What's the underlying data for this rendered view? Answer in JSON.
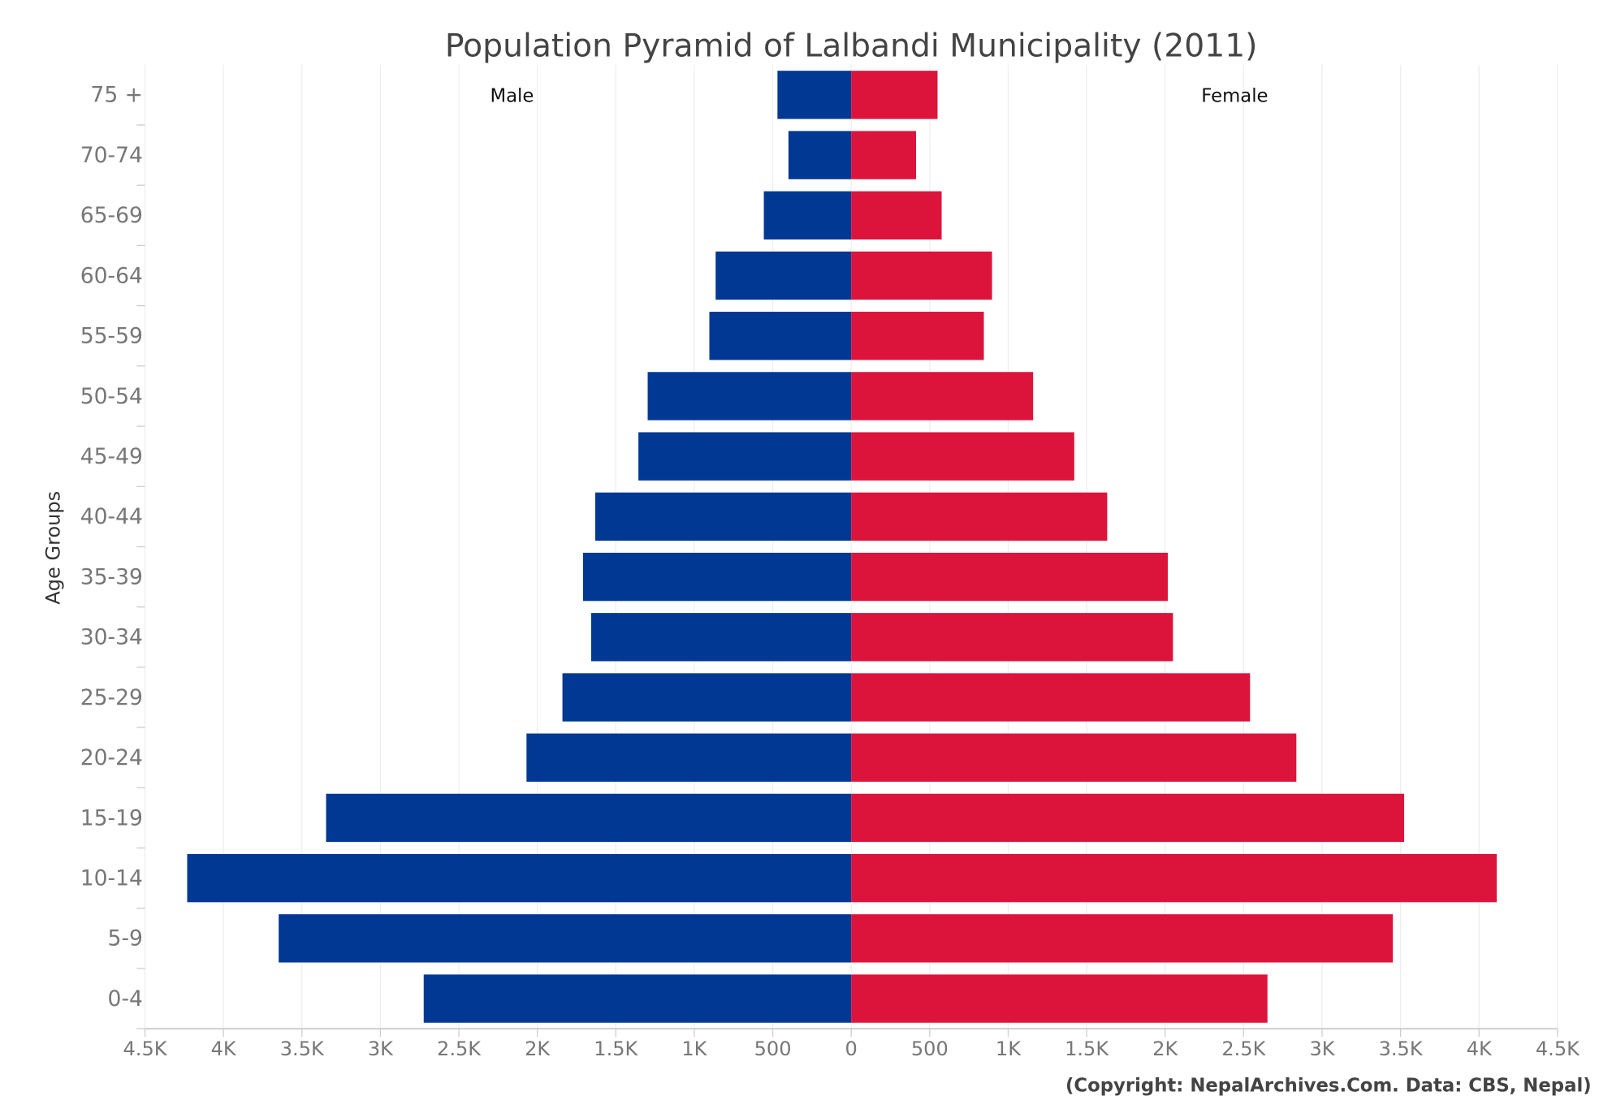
{
  "chart_data": {
    "type": "bar",
    "orientation": "horizontal",
    "title": "Population Pyramid of Lalbandi Municipality (2011)",
    "ylabel": "Age Groups",
    "xlabel": "",
    "credit": "(Copyright: NepalArchives.Com. Data: CBS, Nepal)",
    "categories": [
      "0-4",
      "5-9",
      "10-14",
      "15-19",
      "20-24",
      "25-29",
      "30-34",
      "35-39",
      "40-44",
      "45-49",
      "50-54",
      "55-59",
      "60-64",
      "65-69",
      "70-74",
      "75 +"
    ],
    "xlim": [
      -4500,
      4500
    ],
    "x_tick_labels": [
      "4.5K",
      "4K",
      "3.5K",
      "3K",
      "2.5K",
      "2K",
      "1.5K",
      "1K",
      "500",
      "0",
      "500",
      "1K",
      "1.5K",
      "2K",
      "2.5K",
      "3K",
      "3.5K",
      "4K",
      "4.5K"
    ],
    "grid": true,
    "series": [
      {
        "name": "Male",
        "color": "#003893",
        "side": "left",
        "values": [
          2724,
          3648,
          4231,
          3346,
          2069,
          1840,
          1657,
          1709,
          1631,
          1356,
          1297,
          904,
          864,
          557,
          400,
          470
        ]
      },
      {
        "name": "Female",
        "color": "#DC143C",
        "side": "right",
        "values": [
          2652,
          3451,
          4113,
          3523,
          2836,
          2541,
          2050,
          2017,
          1631,
          1421,
          1159,
          845,
          897,
          576,
          413,
          550
        ]
      }
    ]
  }
}
